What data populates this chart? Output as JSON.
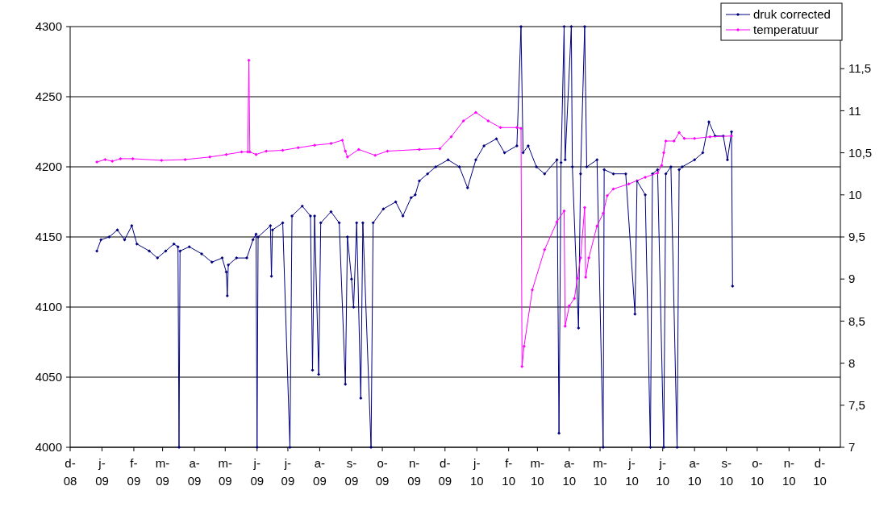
{
  "chart_data": {
    "type": "line",
    "xlim": [
      "2008-12-01",
      "2010-12-21"
    ],
    "xticks": [
      {
        "value": "2008-12-01",
        "label": "d- 08"
      },
      {
        "value": "2009-01-01",
        "label": "j- 09"
      },
      {
        "value": "2009-02-01",
        "label": "f- 09"
      },
      {
        "value": "2009-03-01",
        "label": "m- 09"
      },
      {
        "value": "2009-04-01",
        "label": "a- 09"
      },
      {
        "value": "2009-05-01",
        "label": "m- 09"
      },
      {
        "value": "2009-06-01",
        "label": "j- 09"
      },
      {
        "value": "2009-07-01",
        "label": "j- 09"
      },
      {
        "value": "2009-08-01",
        "label": "a- 09"
      },
      {
        "value": "2009-09-01",
        "label": "s- 09"
      },
      {
        "value": "2009-10-01",
        "label": "o- 09"
      },
      {
        "value": "2009-11-01",
        "label": "n- 09"
      },
      {
        "value": "2009-12-01",
        "label": "d- 09"
      },
      {
        "value": "2010-01-01",
        "label": "j- 10"
      },
      {
        "value": "2010-02-01",
        "label": "f- 10"
      },
      {
        "value": "2010-03-01",
        "label": "m- 10"
      },
      {
        "value": "2010-04-01",
        "label": "a- 10"
      },
      {
        "value": "2010-05-01",
        "label": "m- 10"
      },
      {
        "value": "2010-06-01",
        "label": "j- 10"
      },
      {
        "value": "2010-07-01",
        "label": "j- 10"
      },
      {
        "value": "2010-08-01",
        "label": "a- 10"
      },
      {
        "value": "2010-09-01",
        "label": "s- 10"
      },
      {
        "value": "2010-10-01",
        "label": "o- 10"
      },
      {
        "value": "2010-11-01",
        "label": "n- 10"
      },
      {
        "value": "2010-12-01",
        "label": "d- 10"
      }
    ],
    "ylim": [
      4000,
      4300
    ],
    "yticks": [
      4000,
      4050,
      4100,
      4150,
      4200,
      4250,
      4300
    ],
    "y2lim": [
      7,
      12
    ],
    "y2ticks": [
      7,
      {
        "value": 7.5,
        "label": "7,5"
      },
      8,
      {
        "value": 8.5,
        "label": "8,5"
      },
      9,
      {
        "value": 9.5,
        "label": "9,5"
      },
      10,
      {
        "value": 10.5,
        "label": "10,5"
      },
      11,
      {
        "value": 11.5,
        "label": "11,5"
      }
    ],
    "grid": "y",
    "legend": "top right",
    "marker": "diamond",
    "line_style": "solid",
    "series": [
      {
        "name": "druk corrected",
        "color": "#000080",
        "x": [
          "2008-12-27",
          "2008-12-31",
          "2009-01-08",
          "2009-01-16",
          "2009-01-23",
          "2009-01-30",
          "2009-02-04",
          "2009-02-16",
          "2009-02-24",
          "2009-03-04",
          "2009-03-12",
          "2009-03-16",
          "2009-03-17",
          "2009-03-18",
          "2009-03-27",
          "2009-04-08",
          "2009-04-18",
          "2009-04-28",
          "2009-05-02",
          "2009-05-03",
          "2009-05-04",
          "2009-05-12",
          "2009-05-22",
          "2009-05-28",
          "2009-05-31",
          "2009-06-01",
          "2009-06-02",
          "2009-06-14",
          "2009-06-15",
          "2009-06-16",
          "2009-06-26",
          "2009-07-03",
          "2009-07-05",
          "2009-07-15",
          "2009-07-23",
          "2009-07-25",
          "2009-07-27",
          "2009-07-31",
          "2009-08-02",
          "2009-08-12",
          "2009-08-20",
          "2009-08-26",
          "2009-08-28",
          "2009-09-01",
          "2009-09-03",
          "2009-09-06",
          "2009-09-10",
          "2009-09-12",
          "2009-09-20",
          "2009-09-22",
          "2009-10-02",
          "2009-10-14",
          "2009-10-21",
          "2009-10-29",
          "2009-11-02",
          "2009-11-06",
          "2009-11-14",
          "2009-11-22",
          "2009-12-04",
          "2009-12-15",
          "2009-12-23",
          "2009-12-31",
          "2010-01-08",
          "2010-01-20",
          "2010-01-28",
          "2010-02-09",
          "2010-02-13",
          "2010-02-15",
          "2010-02-20",
          "2010-02-28",
          "2010-03-08",
          "2010-03-20",
          "2010-03-22",
          "2010-03-24",
          "2010-03-27",
          "2010-03-28",
          "2010-04-03",
          "2010-04-04",
          "2010-04-10",
          "2010-04-12",
          "2010-04-16",
          "2010-04-18",
          "2010-04-28",
          "2010-05-04",
          "2010-05-05",
          "2010-05-14",
          "2010-05-26",
          "2010-06-04",
          "2010-06-06",
          "2010-06-14",
          "2010-06-19",
          "2010-06-21",
          "2010-06-26",
          "2010-07-02",
          "2010-07-04",
          "2010-07-09",
          "2010-07-15",
          "2010-07-17",
          "2010-07-20",
          "2010-08-01",
          "2010-08-09",
          "2010-08-15",
          "2010-08-21",
          "2010-08-29",
          "2010-09-02",
          "2010-09-06",
          "2010-09-07"
        ],
        "values": [
          4140,
          4148,
          4150,
          4155,
          4148,
          4158,
          4145,
          4140,
          4135,
          4140,
          4145,
          4143,
          4000,
          4140,
          4143,
          4138,
          4132,
          4135,
          4125,
          4108,
          4130,
          4135,
          4135,
          4148,
          4152,
          4000,
          4150,
          4158,
          4122,
          4155,
          4160,
          4000,
          4165,
          4172,
          4165,
          4055,
          4165,
          4052,
          4160,
          4168,
          4160,
          4045,
          4150,
          4120,
          4100,
          4160,
          4035,
          4160,
          4000,
          4160,
          4170,
          4175,
          4165,
          4178,
          4180,
          4190,
          4195,
          4200,
          4205,
          4200,
          4185,
          4205,
          4215,
          4220,
          4210,
          4215,
          4300,
          4210,
          4215,
          4200,
          4195,
          4205,
          4010,
          4203,
          4300,
          4205,
          4300,
          4200,
          4085,
          4195,
          4300,
          4200,
          4205,
          4000,
          4198,
          4195,
          4195,
          4095,
          4190,
          4180,
          4000,
          4195,
          4198,
          4000,
          4195,
          4200,
          4000,
          4198,
          4200,
          4205,
          4210,
          4232,
          4222,
          4222,
          4205,
          4225,
          4115
        ]
      },
      {
        "name": "temperatuur",
        "color": "#ff00ff",
        "axis": "y2",
        "x": [
          "2008-12-27",
          "2009-01-04",
          "2009-01-11",
          "2009-01-19",
          "2009-01-31",
          "2009-02-28",
          "2009-03-23",
          "2009-04-16",
          "2009-05-02",
          "2009-05-17",
          "2009-05-23",
          "2009-05-24",
          "2009-05-25",
          "2009-05-31",
          "2009-06-10",
          "2009-06-26",
          "2009-07-11",
          "2009-07-27",
          "2009-08-12",
          "2009-08-23",
          "2009-08-26",
          "2009-08-28",
          "2009-09-08",
          "2009-09-24",
          "2009-10-06",
          "2009-11-06",
          "2009-11-26",
          "2009-12-07",
          "2009-12-19",
          "2009-12-31",
          "2010-01-12",
          "2010-01-24",
          "2010-02-09",
          "2010-02-13",
          "2010-02-14",
          "2010-02-16",
          "2010-02-24",
          "2010-03-08",
          "2010-03-20",
          "2010-03-27",
          "2010-03-28",
          "2010-04-01",
          "2010-04-06",
          "2010-04-09",
          "2010-04-12",
          "2010-04-16",
          "2010-04-17",
          "2010-04-20",
          "2010-04-28",
          "2010-05-04",
          "2010-05-08",
          "2010-05-14",
          "2010-05-29",
          "2010-06-14",
          "2010-06-26",
          "2010-06-30",
          "2010-07-02",
          "2010-07-04",
          "2010-07-12",
          "2010-07-17",
          "2010-07-22",
          "2010-08-01",
          "2010-08-16",
          "2010-09-06"
        ],
        "values": [
          10.39,
          10.42,
          10.4,
          10.43,
          10.43,
          10.41,
          10.42,
          10.45,
          10.48,
          10.51,
          10.51,
          11.6,
          10.51,
          10.48,
          10.52,
          10.53,
          10.56,
          10.59,
          10.61,
          10.65,
          10.52,
          10.45,
          10.54,
          10.47,
          10.52,
          10.54,
          10.55,
          10.69,
          10.88,
          10.98,
          10.88,
          10.8,
          10.8,
          10.79,
          7.96,
          8.2,
          8.87,
          9.35,
          9.68,
          9.81,
          8.44,
          8.68,
          8.77,
          9.01,
          9.25,
          9.85,
          9.02,
          9.25,
          9.63,
          9.78,
          9.99,
          10.07,
          10.13,
          10.21,
          10.26,
          10.35,
          10.5,
          10.64,
          10.64,
          10.74,
          10.67,
          10.67,
          10.69,
          10.7
        ]
      }
    ]
  }
}
